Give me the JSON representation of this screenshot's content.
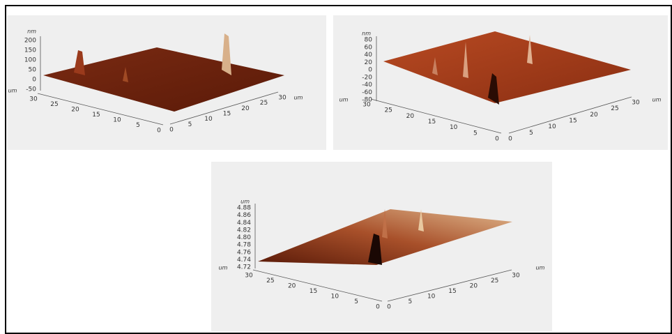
{
  "panels": [
    {
      "z_unit": "nm",
      "z_ticks": [
        "200",
        "150",
        "100",
        "50",
        "0",
        "-50"
      ],
      "left_unit": "um",
      "right_unit": "um",
      "left_ticks": [
        "30",
        "25",
        "20",
        "15",
        "10",
        "5",
        "0"
      ],
      "right_ticks": [
        "0",
        "5",
        "10",
        "15",
        "20",
        "25",
        "30"
      ]
    },
    {
      "z_unit": "nm",
      "z_ticks": [
        "80",
        "60",
        "40",
        "20",
        "0",
        "-20",
        "-40",
        "-60",
        "-80"
      ],
      "left_unit": "um",
      "right_unit": "um",
      "left_ticks": [
        "30",
        "25",
        "20",
        "15",
        "10",
        "5",
        "0"
      ],
      "right_ticks": [
        "0",
        "5",
        "10",
        "15",
        "20",
        "25",
        "30"
      ]
    },
    {
      "z_unit": "um",
      "z_ticks": [
        "4.88",
        "4.86",
        "4.84",
        "4.82",
        "4.80",
        "4.78",
        "4.76",
        "4.74",
        "4.72"
      ],
      "left_unit": "um",
      "right_unit": "um",
      "left_ticks": [
        "30",
        "25",
        "20",
        "15",
        "10",
        "5",
        "0"
      ],
      "right_ticks": [
        "0",
        "5",
        "10",
        "15",
        "20",
        "25",
        "30"
      ]
    }
  ]
}
